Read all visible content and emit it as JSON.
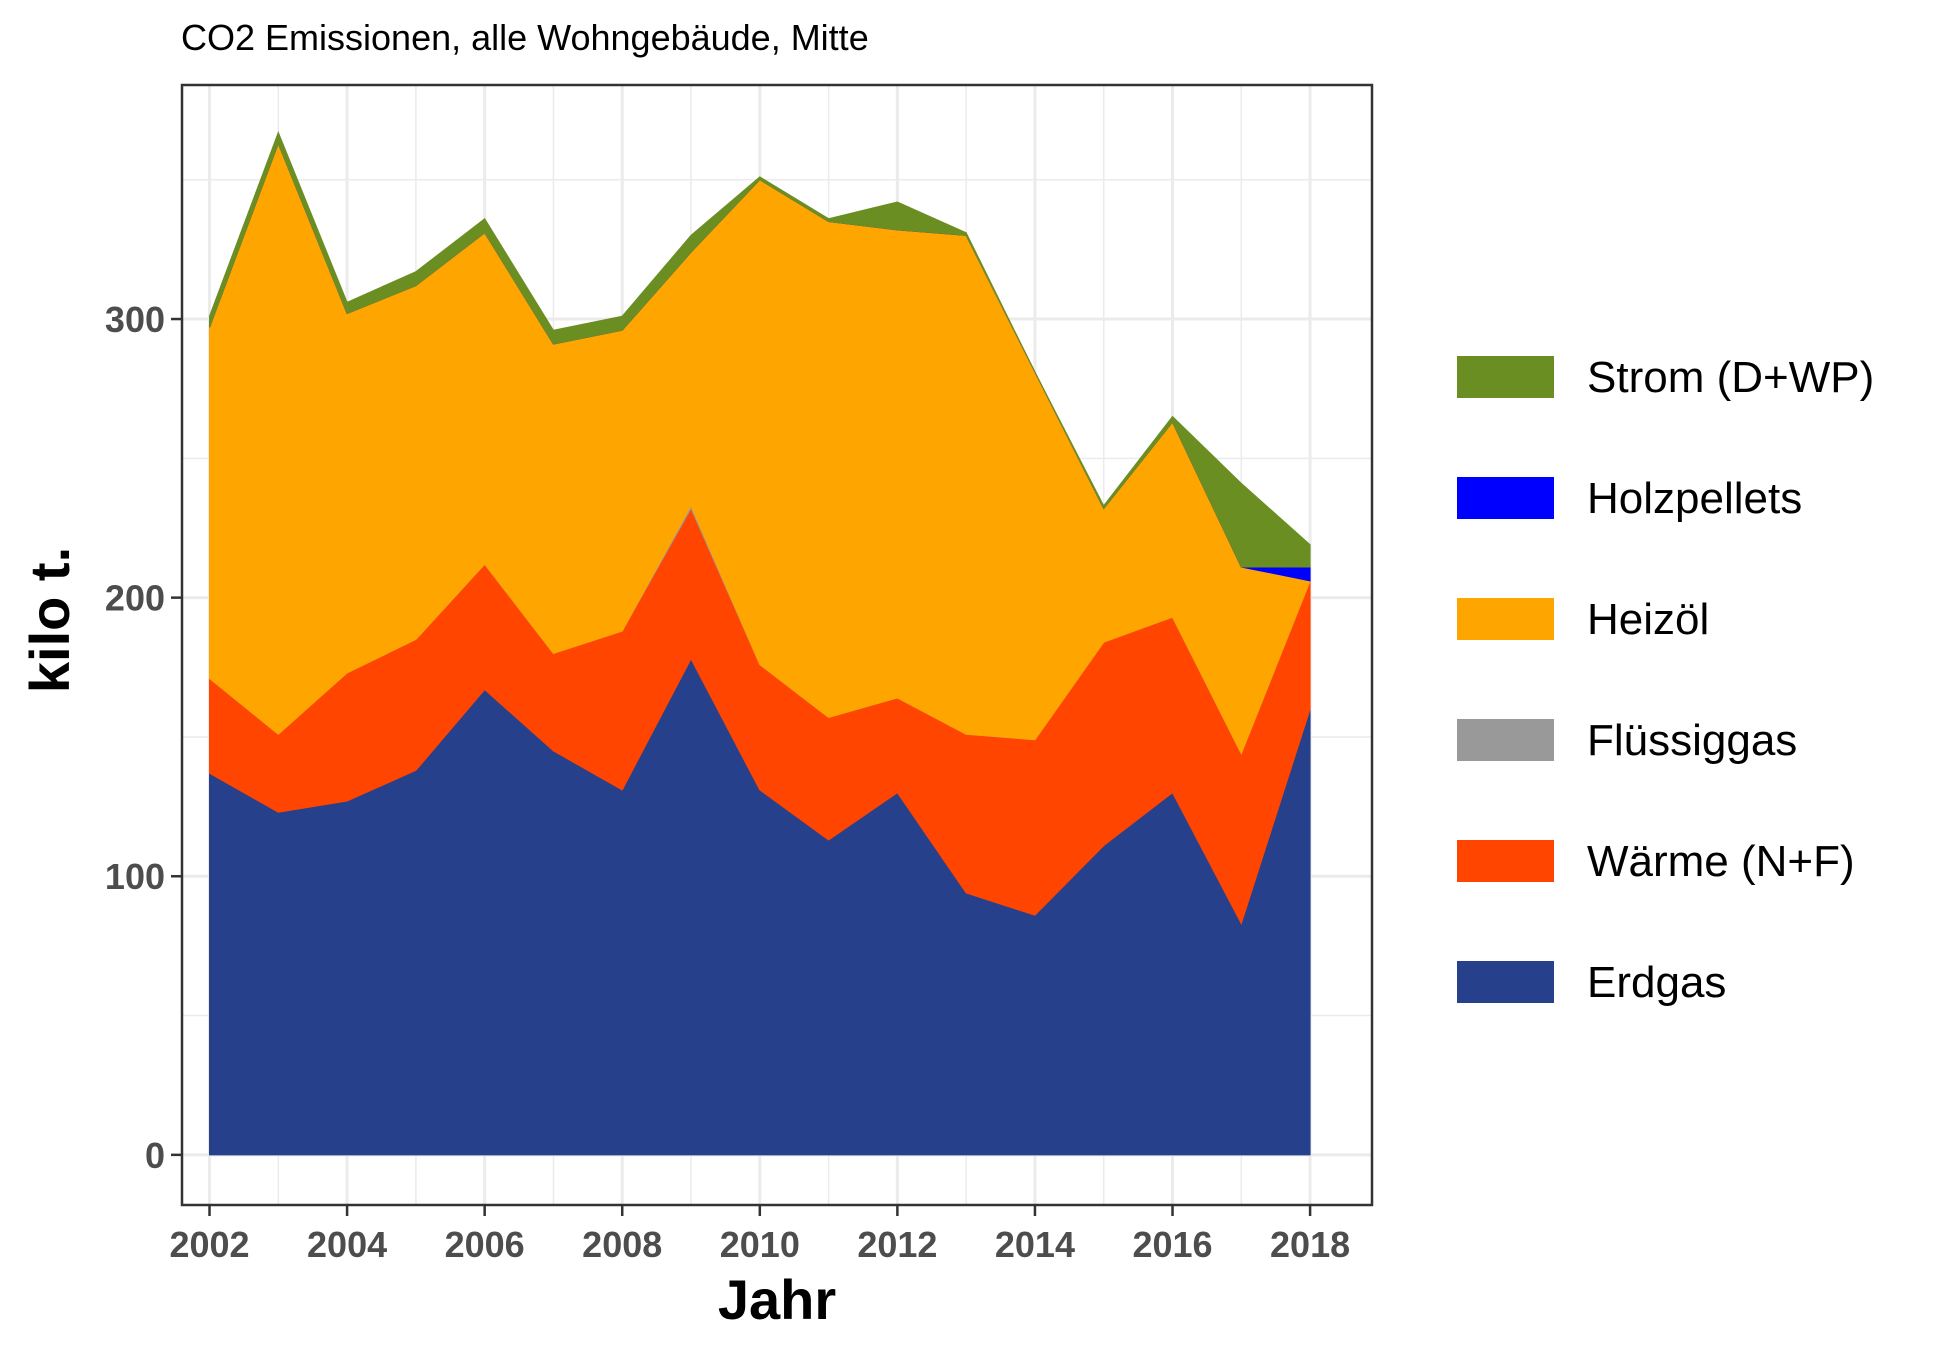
{
  "chart_data": {
    "type": "area",
    "title": "CO2 Emissionen, alle Wohngebäude, Mitte",
    "xlabel": "Jahr",
    "ylabel": "kilo t.",
    "x": [
      2002,
      2003,
      2004,
      2005,
      2006,
      2007,
      2008,
      2009,
      2010,
      2011,
      2012,
      2013,
      2014,
      2015,
      2016,
      2017,
      2018
    ],
    "xlim": [
      2001.6,
      2018.9
    ],
    "ylim": [
      -18,
      384
    ],
    "x_ticks": [
      "2002",
      "2004",
      "2006",
      "2008",
      "2010",
      "2012",
      "2014",
      "2016",
      "2018"
    ],
    "y_ticks": [
      "0",
      "100",
      "200",
      "300"
    ],
    "grid": true,
    "legend_position": "right",
    "stacked": true,
    "series": [
      {
        "name": "Erdgas",
        "color": "#27408B",
        "values": [
          137,
          123,
          127,
          138,
          167,
          145,
          131,
          178,
          131,
          113,
          130,
          94,
          86,
          111,
          130,
          83,
          160
        ]
      },
      {
        "name": "Wärme (N+F)",
        "color": "#FF4500",
        "values": [
          34,
          28,
          46,
          47,
          45,
          35,
          57,
          54,
          45,
          44,
          34,
          57,
          63,
          73,
          63,
          61,
          46
        ]
      },
      {
        "name": "Flüssiggas",
        "color": "#999999",
        "values": [
          0,
          0,
          0,
          0,
          0,
          0,
          0,
          1,
          0,
          0,
          0,
          0,
          0,
          0,
          0,
          0,
          0
        ]
      },
      {
        "name": "Heizöl",
        "color": "#FFA500",
        "values": [
          126,
          212,
          129,
          127,
          119,
          111,
          108,
          91,
          174,
          178,
          168,
          179,
          132,
          48,
          70,
          67,
          0
        ]
      },
      {
        "name": "Holzpellets",
        "color": "#0000FF",
        "values": [
          0,
          0,
          0,
          0,
          0,
          0,
          0,
          0,
          0,
          0,
          0,
          0,
          0,
          0,
          0,
          0,
          5
        ]
      },
      {
        "name": "Strom (D+WP)",
        "color": "#6B8E23",
        "values": [
          4,
          4,
          4,
          5,
          5,
          5,
          5,
          6,
          1,
          1,
          10,
          1,
          0,
          1,
          2,
          30,
          8
        ]
      }
    ],
    "legend_order": [
      "Strom (D+WP)",
      "Holzpellets",
      "Heizöl",
      "Flüssiggas",
      "Wärme (N+F)",
      "Erdgas"
    ]
  }
}
